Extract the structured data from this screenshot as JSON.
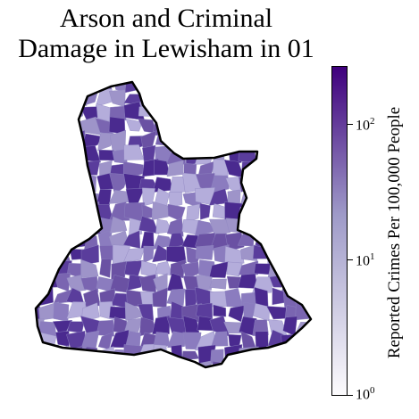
{
  "title": {
    "line1": "Arson and Criminal",
    "line2": "Damage in Lewisham in 01"
  },
  "colorbar": {
    "label": "Reported Crimes Per 100,000 People",
    "scale": "log",
    "range": [
      1,
      300
    ],
    "ticks": [
      {
        "base": "10",
        "exp": "2",
        "value": 100
      },
      {
        "base": "10",
        "exp": "1",
        "value": 10
      },
      {
        "base": "10",
        "exp": "0",
        "value": 1
      }
    ],
    "colors": {
      "low": "#fcfbfd",
      "mid": "#9e9ac8",
      "high": "#3f007d"
    }
  },
  "map": {
    "region": "Lewisham",
    "outline_color": "#000000",
    "fill_palette": [
      "#5a3d9c",
      "#6a51a3",
      "#7a65b1",
      "#8b7cbf",
      "#9e94c9",
      "#b4addb",
      "#4a2a8f"
    ]
  }
}
